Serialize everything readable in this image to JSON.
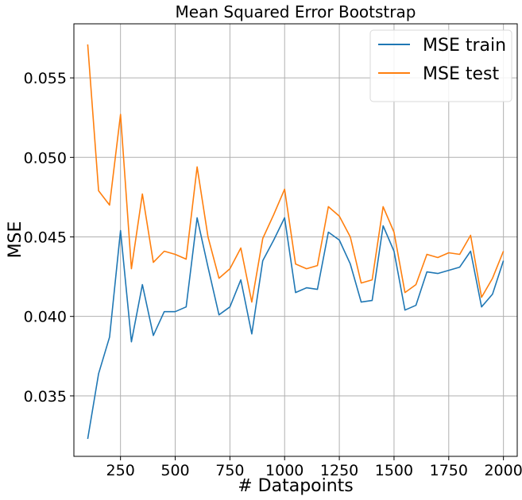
{
  "chart_data": {
    "type": "line",
    "title": "Mean Squared Error Bootstrap",
    "xlabel": "# Datapoints",
    "ylabel": "MSE",
    "xlim": [
      37,
      2063
    ],
    "ylim": [
      0.0312,
      0.0584
    ],
    "xticks": [
      250,
      500,
      750,
      1000,
      1250,
      1500,
      1750,
      2000
    ],
    "yticks": [
      0.035,
      0.04,
      0.045,
      0.05,
      0.055
    ],
    "xtick_labels": [
      "250",
      "500",
      "750",
      "1000",
      "1250",
      "1500",
      "1750",
      "2000"
    ],
    "ytick_labels": [
      "0.035",
      "0.040",
      "0.045",
      "0.050",
      "0.055"
    ],
    "grid": true,
    "legend_position": "top-right",
    "x": [
      100,
      150,
      200,
      250,
      300,
      350,
      400,
      450,
      500,
      550,
      600,
      650,
      700,
      750,
      800,
      850,
      900,
      950,
      1000,
      1050,
      1100,
      1150,
      1200,
      1250,
      1300,
      1350,
      1400,
      1450,
      1500,
      1550,
      1600,
      1650,
      1700,
      1750,
      1800,
      1850,
      1900,
      1950,
      2000
    ],
    "series": [
      {
        "name": "MSE train",
        "color": "#1f77b4",
        "values": [
          0.0323,
          0.0364,
          0.0387,
          0.0454,
          0.0384,
          0.042,
          0.0388,
          0.0403,
          0.0403,
          0.0406,
          0.0462,
          0.0431,
          0.0401,
          0.0406,
          0.0423,
          0.0389,
          0.0435,
          0.0448,
          0.0462,
          0.0415,
          0.0418,
          0.0417,
          0.0453,
          0.0448,
          0.0433,
          0.0409,
          0.041,
          0.0457,
          0.0441,
          0.0404,
          0.0407,
          0.0428,
          0.0427,
          0.0429,
          0.0431,
          0.0441,
          0.0406,
          0.0414,
          0.0435
        ]
      },
      {
        "name": "MSE test",
        "color": "#ff7f0e",
        "values": [
          0.0571,
          0.0479,
          0.047,
          0.0527,
          0.043,
          0.0477,
          0.0434,
          0.0441,
          0.0439,
          0.0436,
          0.0494,
          0.045,
          0.0424,
          0.043,
          0.0443,
          0.0409,
          0.0449,
          0.0464,
          0.048,
          0.0433,
          0.043,
          0.0432,
          0.0469,
          0.0463,
          0.045,
          0.0421,
          0.0423,
          0.0469,
          0.0453,
          0.0415,
          0.042,
          0.0439,
          0.0437,
          0.044,
          0.0439,
          0.0451,
          0.0412,
          0.0424,
          0.0441
        ]
      }
    ]
  }
}
